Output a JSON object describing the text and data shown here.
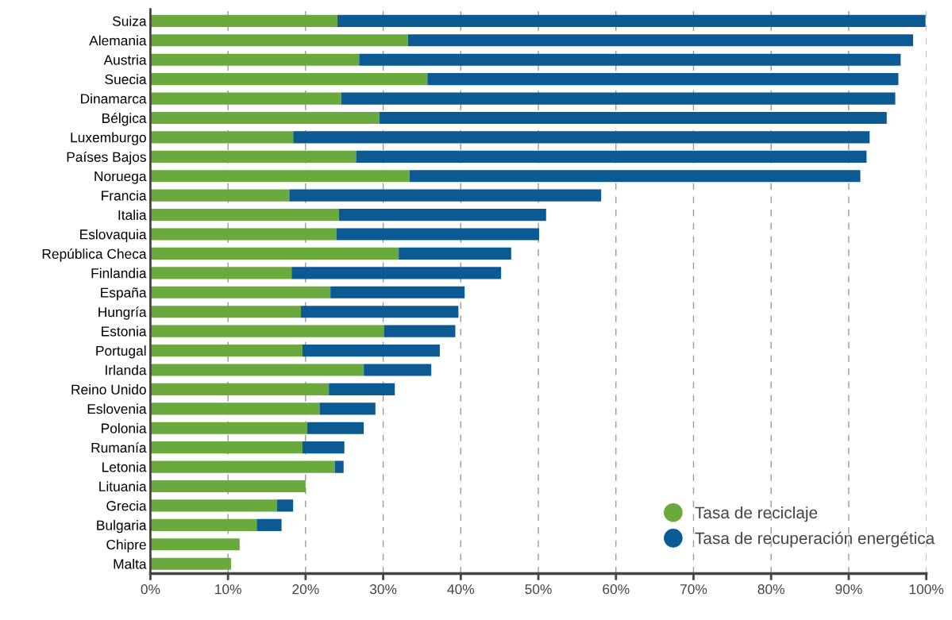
{
  "chart_data": {
    "type": "bar",
    "orientation": "horizontal",
    "stacked": true,
    "categories": [
      "Suiza",
      "Alemania",
      "Austria",
      "Suecia",
      "Dinamarca",
      "Bélgica",
      "Luxemburgo",
      "Países Bajos",
      "Noruega",
      "Francia",
      "Italia",
      "Eslovaquia",
      "República Checa",
      "Finlandia",
      "España",
      "Hungría",
      "Estonia",
      "Portugal",
      "Irlanda",
      "Reino Unido",
      "Eslovenia",
      "Polonia",
      "Rumanía",
      "Letonia",
      "Lituania",
      "Grecia",
      "Bulgaria",
      "Chipre",
      "Malta"
    ],
    "series": [
      {
        "name": "Tasa de reciclaje",
        "color": "#6aaa3c",
        "values": [
          24.1,
          33.2,
          26.9,
          35.7,
          24.6,
          29.5,
          18.4,
          26.5,
          33.4,
          17.9,
          24.3,
          24.0,
          32.0,
          18.2,
          23.2,
          19.4,
          30.1,
          19.6,
          27.5,
          23.0,
          21.8,
          20.2,
          19.6,
          23.8,
          20.0,
          16.3,
          13.7,
          11.5,
          10.4
        ]
      },
      {
        "name": "Tasa de recuperación energética",
        "color": "#0b5a94",
        "values": [
          75.8,
          65.1,
          69.8,
          60.7,
          71.4,
          65.4,
          74.3,
          65.8,
          58.1,
          40.2,
          26.7,
          26.1,
          14.5,
          27.0,
          17.3,
          20.3,
          9.2,
          17.7,
          8.7,
          8.5,
          7.2,
          7.3,
          5.4,
          1.1,
          null,
          2.1,
          3.2,
          null,
          null
        ]
      }
    ],
    "xlim": [
      0,
      100
    ],
    "xticks": [
      {
        "value": 0,
        "label": "0%"
      },
      {
        "value": 10,
        "label": "10%"
      },
      {
        "value": 20,
        "label": "20%"
      },
      {
        "value": 30,
        "label": "30%"
      },
      {
        "value": 40,
        "label": "40%"
      },
      {
        "value": 50,
        "label": "50%"
      },
      {
        "value": 60,
        "label": "60%"
      },
      {
        "value": 70,
        "label": "70%"
      },
      {
        "value": 80,
        "label": "80%"
      },
      {
        "value": 90,
        "label": "90%"
      },
      {
        "value": 100,
        "label": "100%"
      }
    ],
    "grid": "x",
    "legend": "bottom right",
    "marker": "circle"
  }
}
